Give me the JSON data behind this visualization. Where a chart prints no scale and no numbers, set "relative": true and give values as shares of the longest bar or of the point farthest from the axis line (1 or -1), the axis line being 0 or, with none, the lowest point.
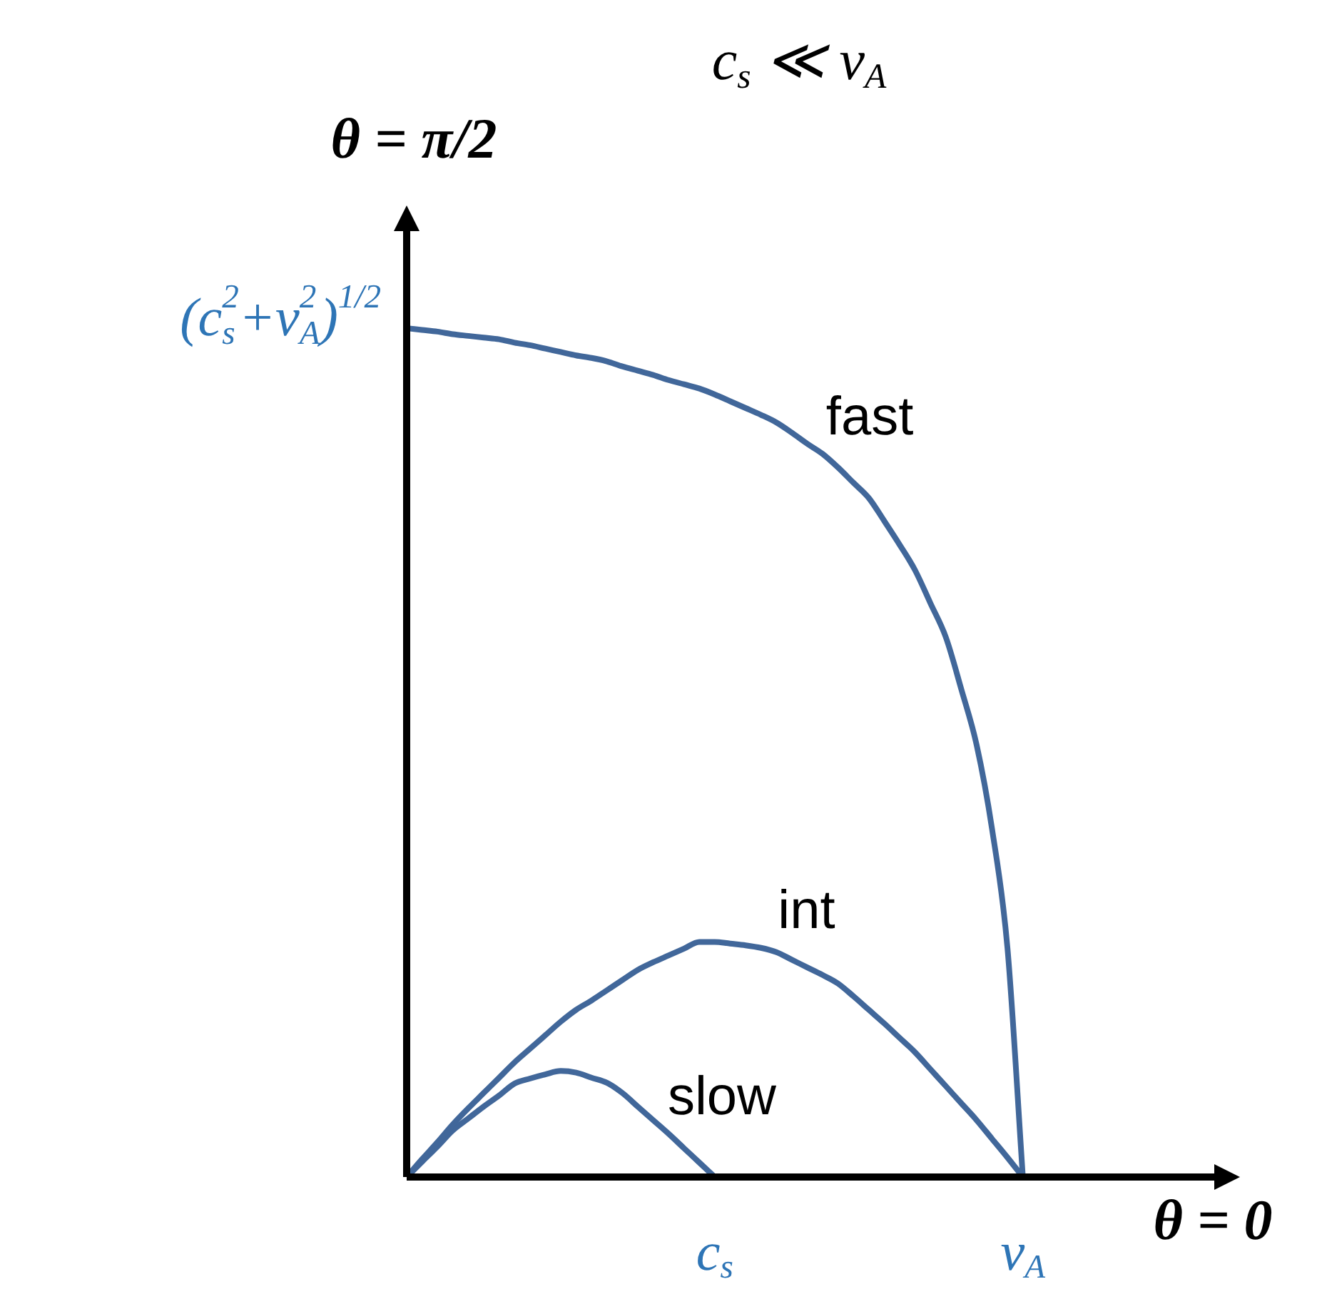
{
  "chart_data": {
    "type": "line",
    "title": "c$_{s}$ ≪ v$_{A}$",
    "xlabel": "θ = 0",
    "ylabel": "θ = π/2",
    "relative": true,
    "annotations": [
      "(c$_{s}$$^{2}$+v$_{A}$$^{2}$)$^{1/2}$"
    ],
    "categories": [
      null,
      null,
      null,
      null,
      null,
      null,
      null,
      null,
      null,
      null,
      null,
      null,
      null,
      null,
      null,
      null,
      null,
      null,
      null,
      null,
      "c$_{s}$",
      null,
      null,
      null,
      null,
      null,
      null,
      null,
      null,
      null,
      null,
      null,
      null,
      null,
      null,
      null,
      null,
      null,
      null,
      null,
      "v$_{A}$",
      null,
      null,
      null,
      null,
      null,
      null,
      null,
      null,
      null,
      null,
      null,
      null,
      null,
      null
    ],
    "legend": false,
    "marker": "none",
    "line_style": "solid",
    "series": [
      {
        "name": "fast",
        "color": "#41679a",
        "values": [
          1,
          0.998,
          0.996,
          0.993,
          0.991,
          0.989,
          0.987,
          0.983,
          0.98,
          0.976,
          0.972,
          0.968,
          0.965,
          0.961,
          0.955,
          0.95,
          0.945,
          0.939,
          0.934,
          0.929,
          0.922,
          0.914,
          0.906,
          0.898,
          0.889,
          0.877,
          0.864,
          0.852,
          0.836,
          0.818,
          0.8,
          0.773,
          0.745,
          0.715,
          0.676,
          0.636,
          0.575,
          0.509,
          0.41,
          0.27,
          0,
          null,
          null,
          null,
          null,
          null,
          null,
          null,
          null,
          null,
          null,
          null,
          null,
          null,
          null
        ]
      },
      {
        "name": "int",
        "color": "#41679a",
        "values": [
          0,
          0.021,
          0.041,
          0.062,
          0.081,
          0.099,
          0.117,
          0.135,
          0.151,
          0.167,
          0.183,
          0.197,
          0.208,
          0.22,
          0.232,
          0.244,
          0.253,
          0.261,
          0.269,
          0.277,
          0.277,
          0.275,
          0.273,
          0.27,
          0.265,
          0.256,
          0.247,
          0.238,
          0.228,
          0.213,
          0.197,
          0.181,
          0.164,
          0.147,
          0.127,
          0.107,
          0.087,
          0.067,
          0.045,
          0.023,
          0,
          null,
          null,
          null,
          null,
          null,
          null,
          null,
          null,
          null,
          null,
          null,
          null,
          null,
          null
        ]
      },
      {
        "name": "slow",
        "color": "#41679a",
        "values": [
          0,
          0.018,
          0.036,
          0.055,
          0.069,
          0.083,
          0.096,
          0.11,
          0.116,
          0.121,
          0.125,
          0.123,
          0.117,
          0.111,
          0.099,
          0.083,
          0.067,
          0.051,
          0.034,
          0.017,
          0,
          null,
          null,
          null,
          null,
          null,
          null,
          null,
          null,
          null,
          null,
          null,
          null,
          null,
          null,
          null,
          null,
          null,
          null,
          null,
          null,
          null,
          null,
          null,
          null,
          null,
          null,
          null,
          null,
          null,
          null,
          null,
          null,
          null,
          null
        ]
      }
    ]
  }
}
